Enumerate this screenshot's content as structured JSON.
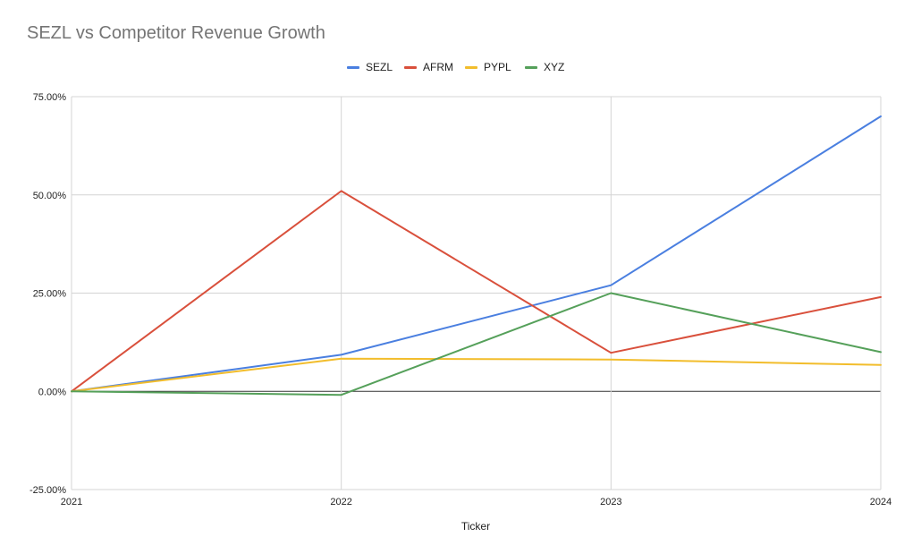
{
  "chart_data": {
    "type": "line",
    "title": "SEZL vs Competitor Revenue Growth",
    "xlabel": "Ticker",
    "ylabel": "",
    "categories": [
      "2021",
      "2022",
      "2023",
      "2024"
    ],
    "ylim": [
      -0.25,
      0.75
    ],
    "yticks": [
      {
        "value": 0.75,
        "label": "75.00%"
      },
      {
        "value": 0.5,
        "label": "50.00%"
      },
      {
        "value": 0.25,
        "label": "25.00%"
      },
      {
        "value": 0.0,
        "label": "0.00%"
      },
      {
        "value": -0.25,
        "label": "-25.00%"
      }
    ],
    "grid": true,
    "legend_position": "top-center",
    "series": [
      {
        "name": "SEZL",
        "color": "#4a7fe0",
        "values": [
          0.0,
          0.093,
          0.27,
          0.7
        ]
      },
      {
        "name": "AFRM",
        "color": "#d9503c",
        "values": [
          0.0,
          0.51,
          0.098,
          0.24
        ]
      },
      {
        "name": "PYPL",
        "color": "#f2bd2c",
        "values": [
          0.0,
          0.083,
          0.081,
          0.067
        ]
      },
      {
        "name": "XYZ",
        "color": "#55a05a",
        "values": [
          0.0,
          -0.009,
          0.25,
          0.1
        ]
      }
    ]
  }
}
